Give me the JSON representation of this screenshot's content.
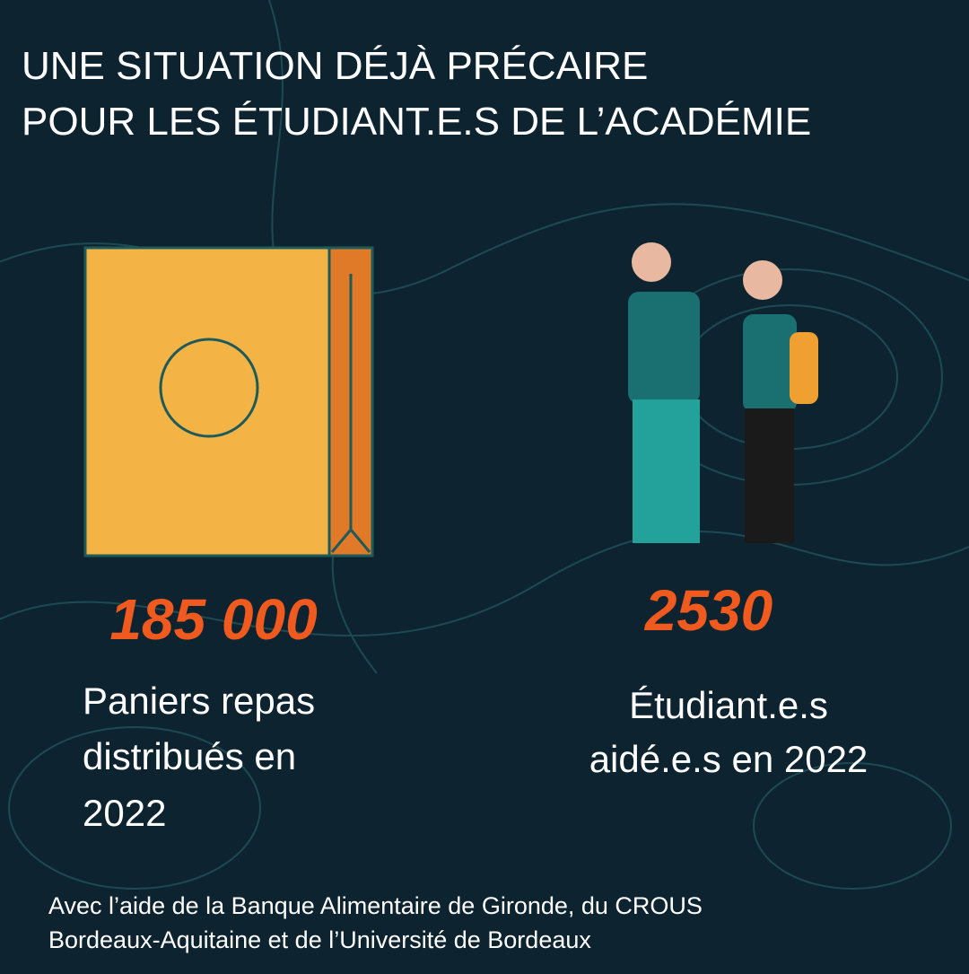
{
  "title_lines": [
    "UNE SITUATION DÉJÀ PRÉCAIRE",
    "POUR LES ÉTUDIANT.E.S DE L’ACADÉMIE"
  ],
  "stats": [
    {
      "number": "185 000",
      "label_lines": [
        "Paniers repas",
        "distribués en",
        "2022"
      ]
    },
    {
      "number": "2530",
      "label_lines": [
        "Étudiant.e.s",
        "aidé.e.s en 2022"
      ]
    }
  ],
  "footer_lines": [
    "Avec l’aide de la Banque Alimentaire de Gironde, du CROUS",
    "Bordeaux-Aquitaine et de l’Université de Bordeaux"
  ]
}
